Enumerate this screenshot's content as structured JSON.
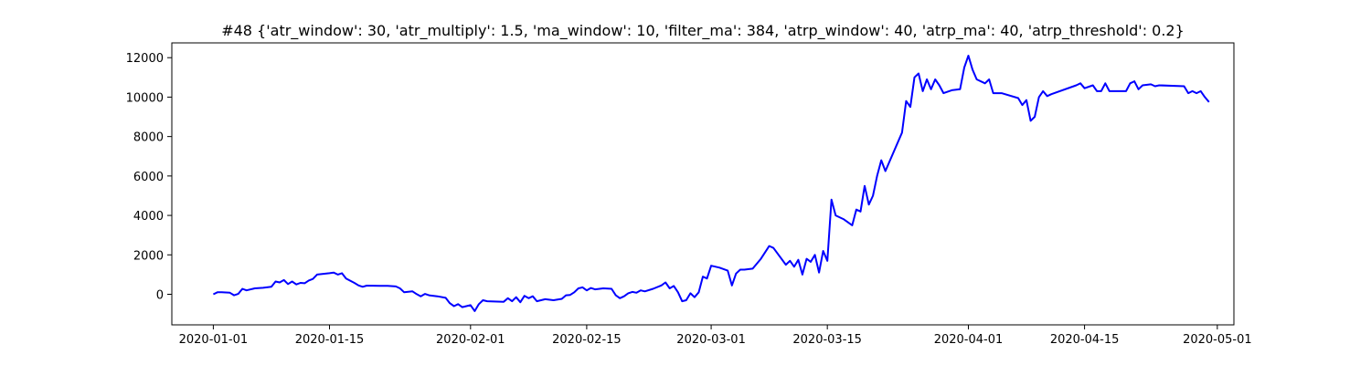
{
  "chart_data": {
    "type": "line",
    "title": "#48 {'atr_window': 30, 'atr_multiply': 1.5, 'ma_window': 10, 'filter_ma': 384, 'atrp_window': 40, 'atrp_ma': 40, 'atrp_threshold': 0.2}",
    "xlabel": "",
    "ylabel": "",
    "x_type": "date",
    "xlim": [
      "2019-12-27",
      "2020-05-03"
    ],
    "ylim": [
      -1550,
      12750
    ],
    "x_ticks": [
      "2020-01-01",
      "2020-01-15",
      "2020-02-01",
      "2020-02-15",
      "2020-03-01",
      "2020-03-15",
      "2020-04-01",
      "2020-04-15",
      "2020-05-01"
    ],
    "y_ticks": [
      0,
      2000,
      4000,
      6000,
      8000,
      10000,
      12000
    ],
    "y_tick_labels": [
      "0",
      "2000",
      "4000",
      "6000",
      "8000",
      "10000",
      "12000"
    ],
    "grid": false,
    "legend": "none",
    "series": [
      {
        "color": "#0000ff",
        "points": [
          [
            "2020-01-01",
            0
          ],
          [
            "2020-01-01 12:00",
            100
          ],
          [
            "2020-01-02",
            100
          ],
          [
            "2020-01-03",
            80
          ],
          [
            "2020-01-03 12:00",
            -50
          ],
          [
            "2020-01-04",
            20
          ],
          [
            "2020-01-04 12:00",
            280
          ],
          [
            "2020-01-05",
            200
          ],
          [
            "2020-01-06",
            300
          ],
          [
            "2020-01-07",
            330
          ],
          [
            "2020-01-08",
            380
          ],
          [
            "2020-01-08 12:00",
            650
          ],
          [
            "2020-01-09",
            600
          ],
          [
            "2020-01-09 12:00",
            720
          ],
          [
            "2020-01-10",
            520
          ],
          [
            "2020-01-10 12:00",
            650
          ],
          [
            "2020-01-11",
            500
          ],
          [
            "2020-01-11 12:00",
            580
          ],
          [
            "2020-01-12",
            560
          ],
          [
            "2020-01-12 12:00",
            700
          ],
          [
            "2020-01-13",
            780
          ],
          [
            "2020-01-13 12:00",
            1000
          ],
          [
            "2020-01-15",
            1070
          ],
          [
            "2020-01-15 12:00",
            1100
          ],
          [
            "2020-01-16",
            1000
          ],
          [
            "2020-01-16 12:00",
            1070
          ],
          [
            "2020-01-17",
            800
          ],
          [
            "2020-01-18",
            580
          ],
          [
            "2020-01-18 12:00",
            450
          ],
          [
            "2020-01-19",
            380
          ],
          [
            "2020-01-19 12:00",
            440
          ],
          [
            "2020-01-21",
            430
          ],
          [
            "2020-01-22",
            430
          ],
          [
            "2020-01-23",
            400
          ],
          [
            "2020-01-23 12:00",
            300
          ],
          [
            "2020-01-24",
            100
          ],
          [
            "2020-01-25",
            150
          ],
          [
            "2020-01-25 12:00",
            10
          ],
          [
            "2020-01-26",
            -100
          ],
          [
            "2020-01-26 12:00",
            20
          ],
          [
            "2020-01-27",
            -50
          ],
          [
            "2020-01-28",
            -100
          ],
          [
            "2020-01-29",
            -180
          ],
          [
            "2020-01-29 12:00",
            -450
          ],
          [
            "2020-01-30",
            -600
          ],
          [
            "2020-01-30 12:00",
            -500
          ],
          [
            "2020-01-31",
            -650
          ],
          [
            "2020-02-01",
            -550
          ],
          [
            "2020-02-01 12:00",
            -850
          ],
          [
            "2020-02-02",
            -500
          ],
          [
            "2020-02-02 12:00",
            -300
          ],
          [
            "2020-02-03",
            -350
          ],
          [
            "2020-02-05",
            -380
          ],
          [
            "2020-02-05 12:00",
            -200
          ],
          [
            "2020-02-06",
            -350
          ],
          [
            "2020-02-06 12:00",
            -150
          ],
          [
            "2020-02-07",
            -400
          ],
          [
            "2020-02-07 12:00",
            -80
          ],
          [
            "2020-02-08",
            -200
          ],
          [
            "2020-02-08 12:00",
            -100
          ],
          [
            "2020-02-09",
            -350
          ],
          [
            "2020-02-10",
            -250
          ],
          [
            "2020-02-11",
            -300
          ],
          [
            "2020-02-12",
            -230
          ],
          [
            "2020-02-12 12:00",
            -50
          ],
          [
            "2020-02-13",
            -30
          ],
          [
            "2020-02-13 12:00",
            100
          ],
          [
            "2020-02-14",
            300
          ],
          [
            "2020-02-14 12:00",
            350
          ],
          [
            "2020-02-15",
            200
          ],
          [
            "2020-02-15 12:00",
            320
          ],
          [
            "2020-02-16",
            250
          ],
          [
            "2020-02-17",
            300
          ],
          [
            "2020-02-18",
            280
          ],
          [
            "2020-02-18 12:00",
            -50
          ],
          [
            "2020-02-19",
            -200
          ],
          [
            "2020-02-19 12:00",
            -100
          ],
          [
            "2020-02-20",
            50
          ],
          [
            "2020-02-20 12:00",
            120
          ],
          [
            "2020-02-21",
            80
          ],
          [
            "2020-02-21 12:00",
            200
          ],
          [
            "2020-02-22",
            150
          ],
          [
            "2020-02-23",
            280
          ],
          [
            "2020-02-24",
            450
          ],
          [
            "2020-02-24 12:00",
            600
          ],
          [
            "2020-02-25",
            300
          ],
          [
            "2020-02-25 12:00",
            420
          ],
          [
            "2020-02-26",
            100
          ],
          [
            "2020-02-26 12:00",
            -350
          ],
          [
            "2020-02-27",
            -300
          ],
          [
            "2020-02-27 12:00",
            50
          ],
          [
            "2020-02-28",
            -150
          ],
          [
            "2020-02-28 12:00",
            100
          ],
          [
            "2020-02-29",
            900
          ],
          [
            "2020-02-29 12:00",
            800
          ],
          [
            "2020-03-01",
            1450
          ],
          [
            "2020-03-02",
            1350
          ],
          [
            "2020-03-03",
            1200
          ],
          [
            "2020-03-03 12:00",
            450
          ],
          [
            "2020-03-04",
            1050
          ],
          [
            "2020-03-04 12:00",
            1250
          ],
          [
            "2020-03-05",
            1250
          ],
          [
            "2020-03-06",
            1300
          ],
          [
            "2020-03-07",
            1800
          ],
          [
            "2020-03-08",
            2450
          ],
          [
            "2020-03-08 12:00",
            2350
          ],
          [
            "2020-03-10",
            1500
          ],
          [
            "2020-03-10 12:00",
            1700
          ],
          [
            "2020-03-11",
            1400
          ],
          [
            "2020-03-11 12:00",
            1750
          ],
          [
            "2020-03-12",
            1000
          ],
          [
            "2020-03-12 12:00",
            1800
          ],
          [
            "2020-03-13",
            1650
          ],
          [
            "2020-03-13 12:00",
            2000
          ],
          [
            "2020-03-14",
            1100
          ],
          [
            "2020-03-14 12:00",
            2200
          ],
          [
            "2020-03-15",
            1700
          ],
          [
            "2020-03-15 12:00",
            4800
          ],
          [
            "2020-03-16",
            4000
          ],
          [
            "2020-03-17",
            3800
          ],
          [
            "2020-03-18",
            3500
          ],
          [
            "2020-03-18 12:00",
            4300
          ],
          [
            "2020-03-19",
            4200
          ],
          [
            "2020-03-19 12:00",
            5500
          ],
          [
            "2020-03-20",
            4550
          ],
          [
            "2020-03-20 12:00",
            5000
          ],
          [
            "2020-03-21",
            6000
          ],
          [
            "2020-03-21 12:00",
            6800
          ],
          [
            "2020-03-22",
            6250
          ],
          [
            "2020-03-24",
            8200
          ],
          [
            "2020-03-24 12:00",
            9800
          ],
          [
            "2020-03-25",
            9500
          ],
          [
            "2020-03-25 12:00",
            11000
          ],
          [
            "2020-03-26",
            11200
          ],
          [
            "2020-03-26 12:00",
            10300
          ],
          [
            "2020-03-27",
            10900
          ],
          [
            "2020-03-27 12:00",
            10400
          ],
          [
            "2020-03-28",
            10900
          ],
          [
            "2020-03-28 12:00",
            10600
          ],
          [
            "2020-03-29",
            10200
          ],
          [
            "2020-03-30",
            10350
          ],
          [
            "2020-03-31",
            10400
          ],
          [
            "2020-03-31 12:00",
            11500
          ],
          [
            "2020-04-01",
            12100
          ],
          [
            "2020-04-01 12:00",
            11400
          ],
          [
            "2020-04-02",
            10900
          ],
          [
            "2020-04-03",
            10700
          ],
          [
            "2020-04-03 12:00",
            10900
          ],
          [
            "2020-04-04",
            10200
          ],
          [
            "2020-04-05",
            10200
          ],
          [
            "2020-04-07",
            9950
          ],
          [
            "2020-04-07 12:00",
            9600
          ],
          [
            "2020-04-08",
            9850
          ],
          [
            "2020-04-08 12:00",
            8800
          ],
          [
            "2020-04-09",
            9000
          ],
          [
            "2020-04-09 12:00",
            10000
          ],
          [
            "2020-04-10",
            10300
          ],
          [
            "2020-04-10 12:00",
            10050
          ],
          [
            "2020-04-11",
            10150
          ],
          [
            "2020-04-14",
            10600
          ],
          [
            "2020-04-14 12:00",
            10700
          ],
          [
            "2020-04-15",
            10450
          ],
          [
            "2020-04-16",
            10600
          ],
          [
            "2020-04-16 12:00",
            10300
          ],
          [
            "2020-04-17",
            10300
          ],
          [
            "2020-04-17 12:00",
            10700
          ],
          [
            "2020-04-18",
            10300
          ],
          [
            "2020-04-20",
            10300
          ],
          [
            "2020-04-20 12:00",
            10700
          ],
          [
            "2020-04-21",
            10800
          ],
          [
            "2020-04-21 12:00",
            10400
          ],
          [
            "2020-04-22",
            10600
          ],
          [
            "2020-04-23",
            10650
          ],
          [
            "2020-04-23 12:00",
            10550
          ],
          [
            "2020-04-24",
            10600
          ],
          [
            "2020-04-27",
            10550
          ],
          [
            "2020-04-27 12:00",
            10200
          ],
          [
            "2020-04-28",
            10300
          ],
          [
            "2020-04-28 12:00",
            10200
          ],
          [
            "2020-04-29",
            10300
          ],
          [
            "2020-04-29 12:00",
            10000
          ],
          [
            "2020-04-30",
            9750
          ]
        ]
      }
    ]
  }
}
